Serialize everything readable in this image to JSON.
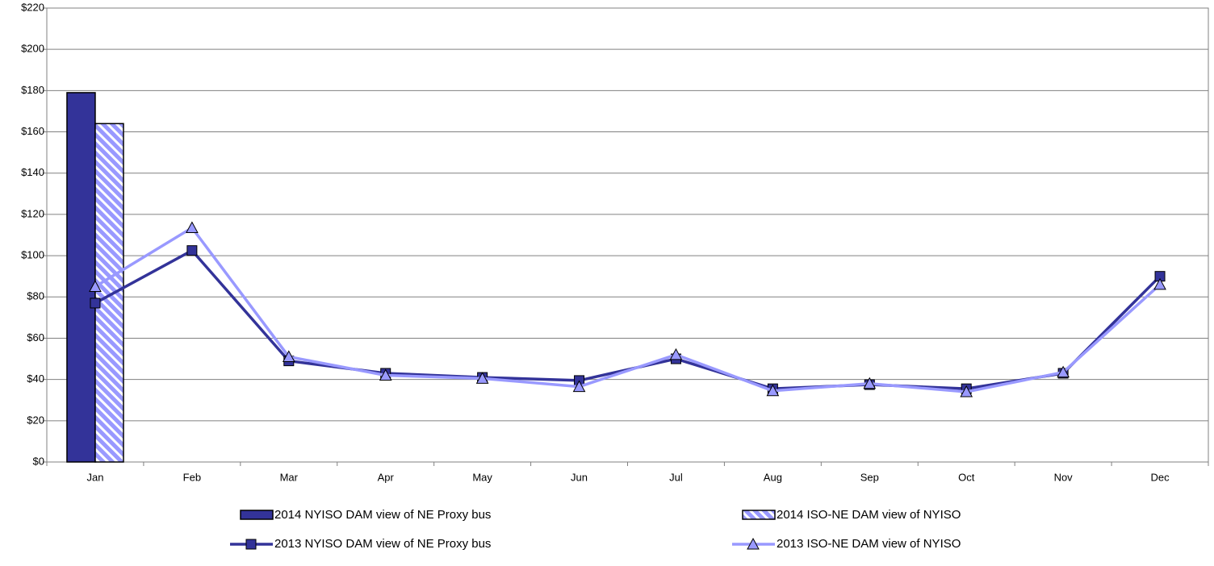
{
  "chart_data": {
    "type": "bar-line",
    "categories": [
      "Jan",
      "Feb",
      "Mar",
      "Apr",
      "May",
      "Jun",
      "Jul",
      "Aug",
      "Sep",
      "Oct",
      "Nov",
      "Dec"
    ],
    "series": [
      {
        "name": "2014 NYISO DAM view of NE Proxy bus",
        "kind": "bar",
        "color": "#333399",
        "pattern": "solid",
        "values": [
          179,
          null,
          null,
          null,
          null,
          null,
          null,
          null,
          null,
          null,
          null,
          null
        ]
      },
      {
        "name": "2014 ISO-NE DAM view of NYISO",
        "kind": "bar",
        "color": "#9999ff",
        "pattern": "hatch",
        "values": [
          164,
          null,
          null,
          null,
          null,
          null,
          null,
          null,
          null,
          null,
          null,
          null
        ]
      },
      {
        "name": "2013 NYISO DAM view of NE Proxy bus",
        "kind": "line",
        "color": "#333399",
        "marker": "square",
        "values": [
          77,
          102.5,
          49,
          43,
          41,
          39.5,
          50,
          35.5,
          37.5,
          35.5,
          43,
          90
        ]
      },
      {
        "name": "2013 ISO-NE DAM view of NYISO",
        "kind": "line",
        "color": "#9999ff",
        "marker": "triangle",
        "values": [
          85,
          113.5,
          51,
          42,
          40.5,
          36.5,
          52,
          34.5,
          38,
          34,
          43.5,
          86
        ]
      }
    ],
    "ylim": [
      0,
      220
    ],
    "yticks": [
      {
        "value": 0,
        "label": "$0"
      },
      {
        "value": 20,
        "label": "$20"
      },
      {
        "value": 40,
        "label": "$40"
      },
      {
        "value": 60,
        "label": "$60"
      },
      {
        "value": 80,
        "label": "$80"
      },
      {
        "value": 100,
        "label": "$100"
      },
      {
        "value": 120,
        "label": "$120"
      },
      {
        "value": 140,
        "label": "$140"
      },
      {
        "value": 160,
        "label": "$160"
      },
      {
        "value": 180,
        "label": "$180"
      },
      {
        "value": 200,
        "label": "$200"
      },
      {
        "value": 220,
        "label": "$220"
      }
    ],
    "grid": true
  }
}
